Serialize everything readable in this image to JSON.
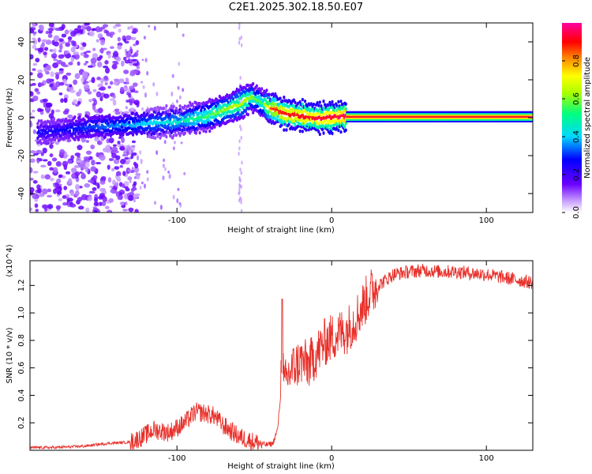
{
  "title": "C2E1.2025.302.18.50.E07",
  "chart_data": [
    {
      "type": "heatmap",
      "name": "spectrogram",
      "xlabel": "Height of straight line (km)",
      "ylabel": "Frequency (Hz)",
      "xlim": [
        -195,
        130
      ],
      "ylim": [
        -50,
        50
      ],
      "xticks": [
        -100,
        0,
        100
      ],
      "xtick_labels": [
        "-100",
        "0",
        "100"
      ],
      "yticks": [
        -40,
        -20,
        0,
        20,
        40
      ],
      "ytick_labels": [
        "-40",
        "-20",
        "0",
        "20",
        "40"
      ],
      "colorbar": {
        "label": "Normalized spectral amplitude",
        "range": [
          0,
          1
        ],
        "ticks": [
          0.0,
          0.2,
          0.4,
          0.6,
          0.8
        ],
        "tick_labels": [
          "0.0",
          "0.2",
          "0.4",
          "0.6",
          "0.8"
        ]
      },
      "ridge": {
        "x": [
          -195,
          -180,
          -160,
          -140,
          -120,
          -100,
          -80,
          -70,
          -60,
          -52,
          -45,
          -40,
          -35,
          -30,
          -20,
          -10,
          0,
          5,
          10,
          50,
          100,
          130
        ],
        "freq": [
          -8,
          -7,
          -5,
          -4,
          -3,
          -2,
          1,
          4,
          7,
          11,
          8,
          5,
          4,
          2,
          1,
          0,
          0,
          1,
          0.5,
          0.5,
          0.5,
          0.5
        ],
        "amplitude": [
          0.25,
          0.25,
          0.3,
          0.35,
          0.4,
          0.45,
          0.55,
          0.6,
          0.65,
          0.6,
          0.55,
          0.75,
          0.85,
          0.9,
          0.92,
          0.95,
          0.95,
          0.98,
          1.0,
          1.0,
          1.0,
          1.0
        ]
      }
    },
    {
      "type": "line",
      "name": "snr",
      "xlabel": "Height of straight line (km)",
      "ylabel": "SNR (10 * v/v)",
      "y_multiplier": "(x10^4)",
      "xlim": [
        -195,
        130
      ],
      "ylim": [
        0,
        1.38
      ],
      "xticks": [
        -100,
        0,
        100
      ],
      "xtick_labels": [
        "-100",
        "0",
        "100"
      ],
      "yticks": [
        0.2,
        0.4,
        0.6,
        0.8,
        1.0,
        1.2
      ],
      "ytick_labels": [
        "0.2",
        "0.4",
        "0.6",
        "0.8",
        "1.0",
        "1.2"
      ],
      "series": [
        {
          "name": "SNR",
          "color": "#e8302a",
          "x": [
            -195,
            -180,
            -160,
            -145,
            -130,
            -122,
            -115,
            -105,
            -95,
            -88,
            -82,
            -76,
            -70,
            -60,
            -50,
            -42,
            -38,
            -35,
            -33,
            -32,
            -31,
            -28,
            -25,
            -20,
            -15,
            -10,
            -5,
            0,
            5,
            10,
            15,
            20,
            25,
            30,
            40,
            50,
            60,
            70,
            80,
            90,
            100,
            110,
            120,
            130
          ],
          "y": [
            0.02,
            0.02,
            0.03,
            0.05,
            0.06,
            0.1,
            0.15,
            0.13,
            0.2,
            0.28,
            0.27,
            0.25,
            0.18,
            0.1,
            0.06,
            0.04,
            0.05,
            0.15,
            0.4,
            0.95,
            0.45,
            0.55,
            0.6,
            0.65,
            0.62,
            0.7,
            0.78,
            0.82,
            0.85,
            0.88,
            0.95,
            1.05,
            1.15,
            1.2,
            1.28,
            1.3,
            1.31,
            1.3,
            1.3,
            1.29,
            1.28,
            1.26,
            1.24,
            1.22
          ]
        }
      ]
    }
  ]
}
